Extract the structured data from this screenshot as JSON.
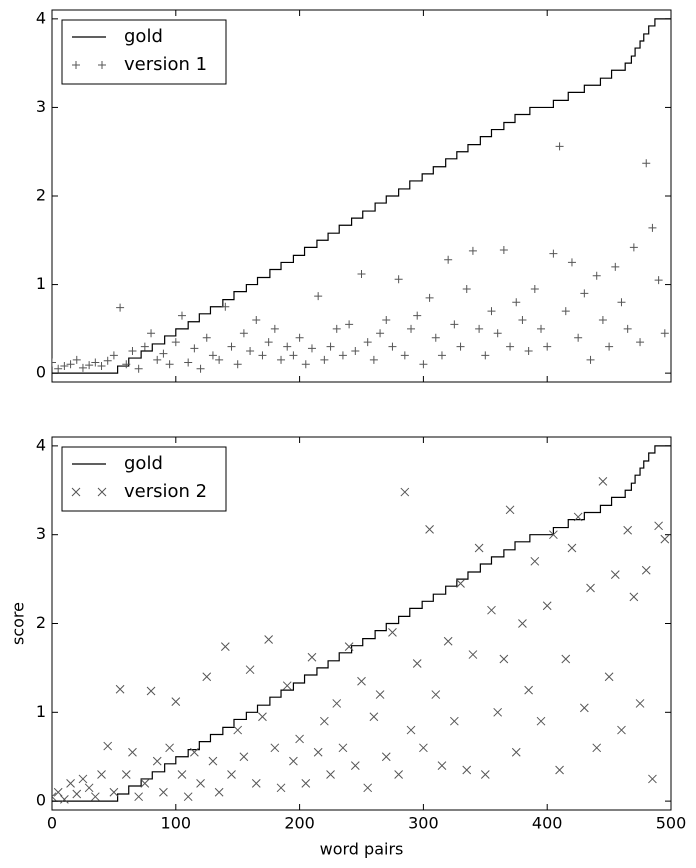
{
  "chart_data": [
    {
      "type": "scatter",
      "xlim": [
        0,
        500
      ],
      "ylim": [
        -0.1,
        4.1
      ],
      "xticks": [
        0,
        100,
        200,
        300,
        400,
        500
      ],
      "yticks": [
        0,
        1,
        2,
        3,
        4
      ],
      "legend": "upper left",
      "show_xtick_labels": false,
      "series": [
        {
          "name": "gold",
          "color": "#000000",
          "style": "step",
          "x": [
            0,
            53,
            62,
            72,
            81,
            91,
            100,
            110,
            119,
            128,
            138,
            147,
            157,
            166,
            176,
            185,
            195,
            204,
            214,
            223,
            232,
            242,
            251,
            261,
            270,
            280,
            289,
            299,
            308,
            318,
            327,
            336,
            346,
            355,
            365,
            374,
            386,
            405,
            417,
            430,
            443,
            452,
            463,
            468,
            471,
            475,
            478,
            482,
            487
          ],
          "values": [
            0,
            0.08,
            0.17,
            0.25,
            0.33,
            0.42,
            0.5,
            0.58,
            0.67,
            0.75,
            0.83,
            0.92,
            1,
            1.08,
            1.17,
            1.25,
            1.33,
            1.42,
            1.5,
            1.58,
            1.67,
            1.75,
            1.83,
            1.92,
            2,
            2.08,
            2.17,
            2.25,
            2.33,
            2.42,
            2.5,
            2.58,
            2.67,
            2.75,
            2.83,
            2.92,
            3,
            3.08,
            3.17,
            3.25,
            3.33,
            3.42,
            3.5,
            3.58,
            3.67,
            3.75,
            3.83,
            3.92,
            4
          ]
        },
        {
          "name": "version 1",
          "color": "#555555",
          "marker": "+",
          "x": [
            0,
            5,
            10,
            15,
            20,
            25,
            30,
            35,
            40,
            45,
            50,
            55,
            60,
            65,
            70,
            75,
            80,
            85,
            90,
            95,
            100,
            105,
            110,
            115,
            120,
            125,
            130,
            135,
            140,
            145,
            150,
            155,
            160,
            165,
            170,
            175,
            180,
            185,
            190,
            195,
            200,
            205,
            210,
            215,
            220,
            225,
            230,
            235,
            240,
            245,
            250,
            255,
            260,
            265,
            270,
            275,
            280,
            285,
            290,
            295,
            300,
            305,
            310,
            315,
            320,
            325,
            330,
            335,
            340,
            345,
            350,
            355,
            360,
            365,
            370,
            375,
            380,
            385,
            390,
            395,
            400,
            405,
            410,
            415,
            420,
            425,
            430,
            435,
            440,
            445,
            450,
            455,
            460,
            465,
            470,
            475,
            480,
            485,
            490,
            495
          ],
          "values": [
            0.12,
            0.05,
            0.08,
            0.1,
            0.15,
            0.06,
            0.09,
            0.12,
            0.08,
            0.14,
            0.2,
            0.74,
            0.1,
            0.25,
            0.05,
            0.3,
            0.45,
            0.15,
            0.22,
            0.1,
            0.35,
            0.65,
            0.12,
            0.28,
            0.05,
            0.4,
            0.2,
            0.15,
            0.75,
            0.3,
            0.1,
            0.45,
            0.25,
            0.6,
            0.2,
            0.35,
            0.5,
            0.15,
            0.3,
            0.2,
            0.4,
            0.1,
            0.28,
            0.87,
            0.15,
            0.3,
            0.5,
            0.2,
            0.55,
            0.25,
            1.12,
            0.35,
            0.15,
            0.45,
            0.6,
            0.3,
            1.06,
            0.2,
            0.5,
            0.65,
            0.1,
            0.85,
            0.4,
            0.2,
            1.28,
            0.55,
            0.3,
            0.95,
            1.38,
            0.5,
            0.2,
            0.7,
            0.45,
            1.39,
            0.3,
            0.8,
            0.6,
            0.25,
            0.95,
            0.5,
            0.3,
            1.35,
            2.56,
            0.7,
            1.25,
            0.4,
            0.9,
            0.15,
            1.1,
            0.6,
            0.3,
            1.2,
            0.8,
            0.5,
            1.42,
            0.35,
            2.37,
            1.64,
            1.05,
            0.45
          ]
        }
      ]
    },
    {
      "type": "scatter",
      "xlim": [
        0,
        500
      ],
      "ylim": [
        -0.1,
        4.1
      ],
      "xticks": [
        0,
        100,
        200,
        300,
        400,
        500
      ],
      "yticks": [
        0,
        1,
        2,
        3,
        4
      ],
      "legend": "upper left",
      "show_xtick_labels": true,
      "xlabel": "word pairs",
      "ylabel": "score",
      "series": [
        {
          "name": "gold",
          "color": "#000000",
          "style": "step",
          "x": [
            0,
            53,
            62,
            72,
            81,
            91,
            100,
            110,
            119,
            128,
            138,
            147,
            157,
            166,
            176,
            185,
            195,
            204,
            214,
            223,
            232,
            242,
            251,
            261,
            270,
            280,
            289,
            299,
            308,
            318,
            327,
            336,
            346,
            355,
            365,
            374,
            386,
            405,
            417,
            430,
            443,
            452,
            463,
            468,
            471,
            475,
            478,
            482,
            487
          ],
          "values": [
            0,
            0.08,
            0.17,
            0.25,
            0.33,
            0.42,
            0.5,
            0.58,
            0.67,
            0.75,
            0.83,
            0.92,
            1,
            1.08,
            1.17,
            1.25,
            1.33,
            1.42,
            1.5,
            1.58,
            1.67,
            1.75,
            1.83,
            1.92,
            2,
            2.08,
            2.17,
            2.25,
            2.33,
            2.42,
            2.5,
            2.58,
            2.67,
            2.75,
            2.83,
            2.92,
            3,
            3.08,
            3.17,
            3.25,
            3.33,
            3.42,
            3.5,
            3.58,
            3.67,
            3.75,
            3.83,
            3.92,
            4
          ]
        },
        {
          "name": "version 2",
          "color": "#555555",
          "marker": "x",
          "x": [
            0,
            5,
            10,
            15,
            20,
            25,
            30,
            35,
            40,
            45,
            50,
            55,
            60,
            65,
            70,
            75,
            80,
            85,
            90,
            95,
            100,
            105,
            110,
            115,
            120,
            125,
            130,
            135,
            140,
            145,
            150,
            155,
            160,
            165,
            170,
            175,
            180,
            185,
            190,
            195,
            200,
            205,
            210,
            215,
            220,
            225,
            230,
            235,
            240,
            245,
            250,
            255,
            260,
            265,
            270,
            275,
            280,
            285,
            290,
            295,
            300,
            305,
            310,
            315,
            320,
            325,
            330,
            335,
            340,
            345,
            350,
            355,
            360,
            365,
            370,
            375,
            380,
            385,
            390,
            395,
            400,
            405,
            410,
            415,
            420,
            425,
            430,
            435,
            440,
            445,
            450,
            455,
            460,
            465,
            470,
            475,
            480,
            485,
            490,
            495
          ],
          "values": [
            0.05,
            0.1,
            0.02,
            0.2,
            0.08,
            0.25,
            0.15,
            0.05,
            0.3,
            0.62,
            0.1,
            1.26,
            0.3,
            0.55,
            0.05,
            0.2,
            1.24,
            0.45,
            0.1,
            0.6,
            1.12,
            0.3,
            0.05,
            0.55,
            0.2,
            1.4,
            0.45,
            0.1,
            1.74,
            0.3,
            0.8,
            0.5,
            1.48,
            0.2,
            0.95,
            1.82,
            0.6,
            0.15,
            1.3,
            0.45,
            0.7,
            0.2,
            1.62,
            0.55,
            0.9,
            0.3,
            1.1,
            0.6,
            1.74,
            0.4,
            1.35,
            0.15,
            0.95,
            1.2,
            0.5,
            1.9,
            0.3,
            3.48,
            0.8,
            1.55,
            0.6,
            3.06,
            1.2,
            0.4,
            1.8,
            0.9,
            2.45,
            0.35,
            1.65,
            2.85,
            0.3,
            2.15,
            1,
            1.6,
            3.28,
            0.55,
            2,
            1.25,
            2.7,
            0.9,
            2.2,
            3,
            0.35,
            1.6,
            2.85,
            3.2,
            1.05,
            2.4,
            0.6,
            3.6,
            1.4,
            2.55,
            0.8,
            3.05,
            2.3,
            1.1,
            2.6,
            0.25,
            3.1,
            2.95
          ]
        }
      ]
    }
  ]
}
